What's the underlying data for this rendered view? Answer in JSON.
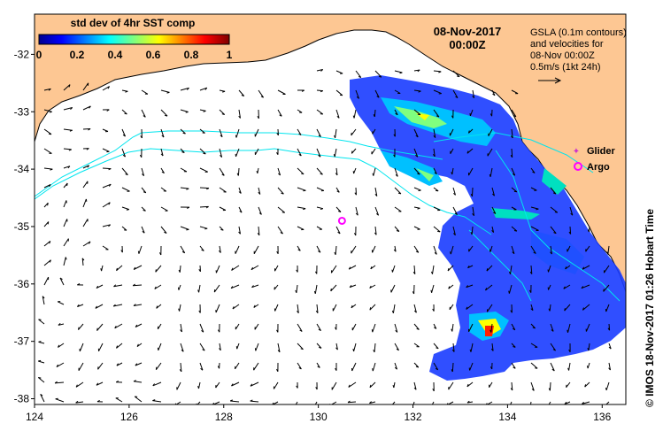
{
  "legend": {
    "title": "std dev of 4hr SST comp",
    "ticks": [
      "0",
      "0.2",
      "0.4",
      "0.6",
      "0.8",
      "1"
    ],
    "min": 0,
    "max": 1
  },
  "header": {
    "date": "08-Nov-2017",
    "time": "00:00Z"
  },
  "note": {
    "line1": "GSLA (0.1m contours)",
    "line2": "and velocities for",
    "line3": "08-Nov 00:00Z",
    "line4": "0.5m/s (1kt 24h)"
  },
  "key": {
    "glider": "Glider",
    "argo": "Argo"
  },
  "argo_float": {
    "lon": 130.5,
    "lat": -34.9
  },
  "axes": {
    "x_range": [
      124,
      136.5
    ],
    "y_range": [
      -38.1,
      -31.3
    ],
    "x_ticks": [
      "124",
      "126",
      "128",
      "130",
      "132",
      "134",
      "136"
    ],
    "y_ticks": [
      "-32",
      "-33",
      "-34",
      "-35",
      "-36",
      "-37",
      "-38"
    ]
  },
  "credit": "© IMOS 18-Nov-2017 01:26 Hobart Time",
  "colors": {
    "land": "#fdc793",
    "ocean": "#ffffff",
    "contour": "#00e5ee",
    "argo": "#ff00ff",
    "glider": "#cc33cc"
  }
}
